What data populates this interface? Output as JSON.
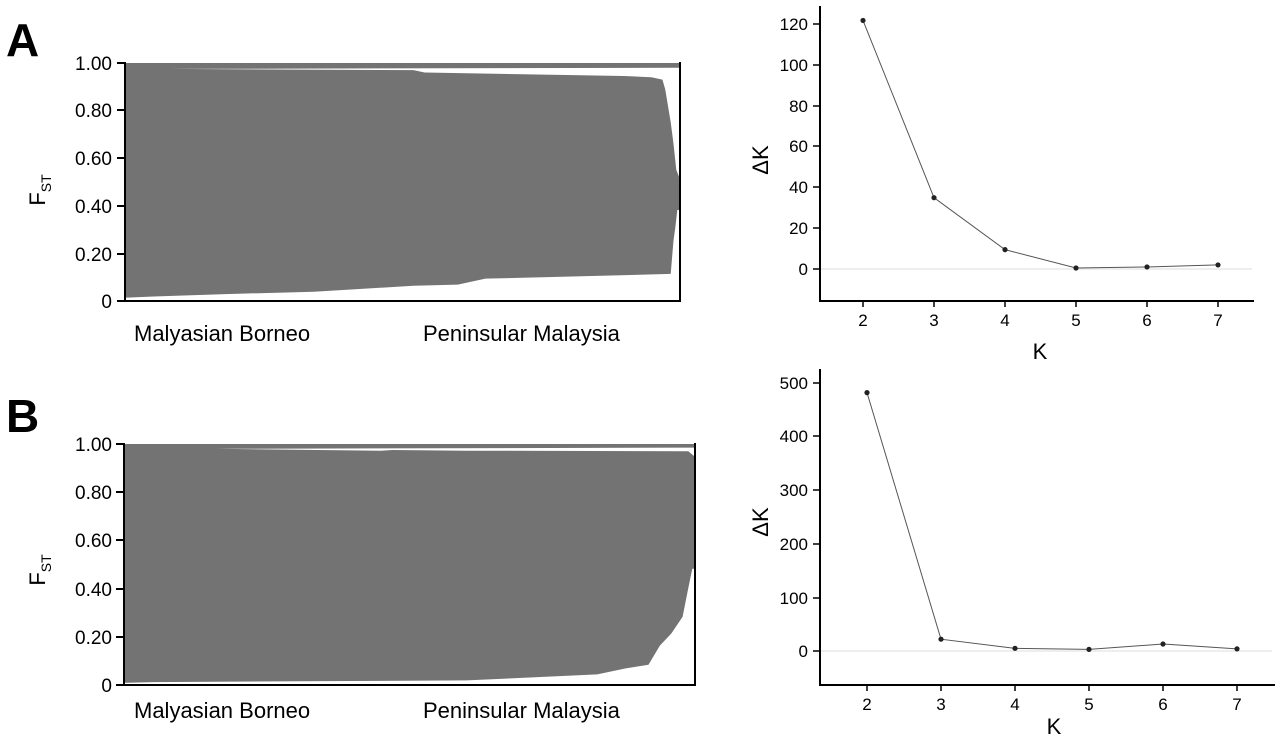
{
  "panels": [
    {
      "letter": "A",
      "ylabel_main": "F",
      "ylabel_sub": "ST",
      "yticks": [
        "0",
        "0.20",
        "0.40",
        "0.60",
        "0.80",
        "1.00"
      ],
      "groups": [
        "Malyasian Borneo",
        "Peninsular Malaysia"
      ],
      "dk_ylabel": "ΔK",
      "dk_xlabel": "K",
      "dk_yticks": [
        "0",
        "20",
        "40",
        "60",
        "80",
        "100",
        "120"
      ],
      "dk_xticks": [
        "2",
        "3",
        "4",
        "5",
        "6",
        "7"
      ]
    },
    {
      "letter": "B",
      "ylabel_main": "F",
      "ylabel_sub": "ST",
      "yticks": [
        "0",
        "0.20",
        "0.40",
        "0.60",
        "0.80",
        "1.00"
      ],
      "groups": [
        "Malyasian Borneo",
        "Peninsular Malaysia"
      ],
      "dk_ylabel": "ΔK",
      "dk_xlabel": "K",
      "dk_yticks": [
        "0",
        "100",
        "200",
        "300",
        "400",
        "500"
      ],
      "dk_xticks": [
        "2",
        "3",
        "4",
        "5",
        "6",
        "7"
      ]
    }
  ],
  "colors": {
    "cluster_1": "#737373",
    "cluster_2": "#ffffff",
    "line": "#555555",
    "point": "#222222",
    "axis": "#000000",
    "baseline": "#dddddd"
  },
  "chart_data": [
    {
      "type": "bar",
      "title": "",
      "ylabel": "FST",
      "xlabel": "",
      "ylim": [
        0,
        1
      ],
      "categories": [
        "Malyasian Borneo",
        "Peninsular Malaysia"
      ],
      "group_fraction": 0.55,
      "series": [
        {
          "name": "",
          "values": [
            [
              0,
              0.01
            ],
            [
              0.05,
              0.015
            ],
            [
              0.18,
              0.025
            ],
            [
              0.34,
              0.035
            ],
            [
              0.52,
              0.06
            ],
            [
              0.6,
              0.065
            ],
            [
              0.65,
              0.09
            ],
            [
              0.985,
              0.11
            ],
            [
              0.99,
              0.25
            ],
            [
              0.993,
              0.3
            ],
            [
              0.997,
              0.38
            ],
            [
              1.0,
              0.38
            ],
            [
              1.0,
              0.98
            ],
            [
              0.08,
              0.975
            ],
            [
              0.52,
              0.97
            ],
            [
              0.54,
              0.96
            ],
            [
              0.9,
              0.945
            ],
            [
              0.95,
              0.94
            ],
            [
              0.97,
              0.93
            ],
            [
              0.975,
              0.89
            ],
            [
              0.98,
              0.82
            ],
            [
              0.985,
              0.75
            ],
            [
              0.99,
              0.66
            ],
            [
              0.995,
              0.55
            ],
            [
              1.0,
              0.52
            ]
          ]
        }
      ]
    },
    {
      "type": "line",
      "title": "",
      "xlabel": "K",
      "ylabel": "ΔK",
      "xlim": [
        1.5,
        7.5
      ],
      "ylim": [
        -15,
        125
      ],
      "x": [
        2,
        3,
        4,
        5,
        6,
        7
      ],
      "series": [
        {
          "name": "",
          "values": [
            122,
            35,
            9.5,
            0.5,
            1,
            2
          ]
        }
      ]
    },
    {
      "type": "bar",
      "title": "",
      "ylabel": "FST",
      "xlabel": "",
      "ylim": [
        0,
        1
      ],
      "categories": [
        "Malyasian Borneo",
        "Peninsular Malaysia"
      ],
      "group_fraction": 0.616,
      "series": [
        {
          "name": "",
          "values": [
            [
              0,
              0.005
            ],
            [
              0.05,
              0.008
            ],
            [
              0.35,
              0.012
            ],
            [
              0.6,
              0.015
            ],
            [
              0.83,
              0.04
            ],
            [
              0.88,
              0.065
            ],
            [
              0.92,
              0.08
            ],
            [
              0.94,
              0.16
            ],
            [
              0.96,
              0.21
            ],
            [
              0.98,
              0.28
            ],
            [
              0.99,
              0.4
            ],
            [
              0.997,
              0.48
            ],
            [
              1.0,
              0.48
            ],
            [
              1.0,
              0.985
            ],
            [
              0.16,
              0.98
            ],
            [
              0.34,
              0.975
            ],
            [
              0.45,
              0.972
            ],
            [
              0.47,
              0.975
            ],
            [
              0.6,
              0.972
            ],
            [
              0.99,
              0.97
            ],
            [
              1.0,
              0.95
            ]
          ]
        }
      ]
    },
    {
      "type": "line",
      "title": "",
      "xlabel": "K",
      "ylabel": "ΔK",
      "xlim": [
        1.5,
        7.5
      ],
      "ylim": [
        -60,
        530
      ],
      "x": [
        2,
        3,
        4,
        5,
        6,
        7
      ],
      "series": [
        {
          "name": "",
          "values": [
            482,
            22,
            5,
            3,
            13,
            4
          ]
        }
      ]
    }
  ]
}
